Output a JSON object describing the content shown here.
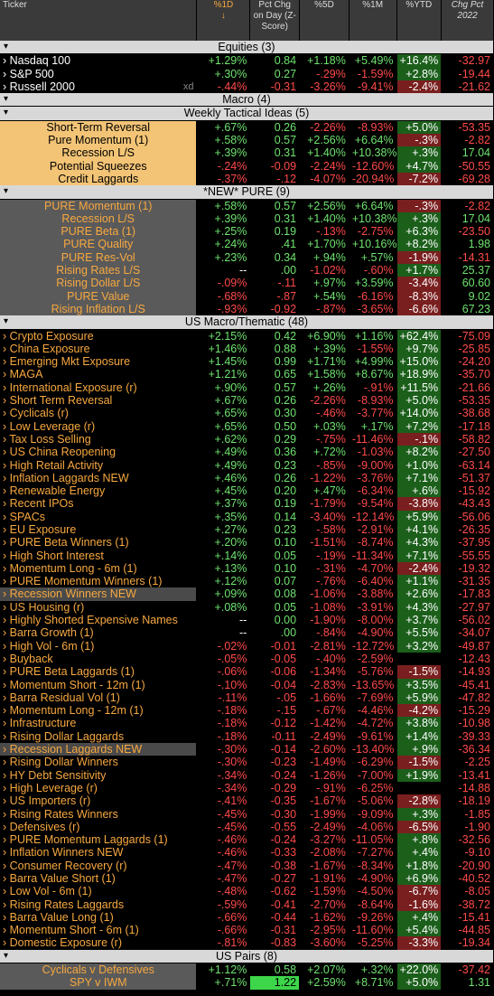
{
  "header": {
    "ticker": "Ticker",
    "col1d": "%1D",
    "col1d_arrow": "↓",
    "colz": "Pct Chg on Day (Z-Score)",
    "col5d": "%5D",
    "col1m": "%1M",
    "colytd": "%YTD",
    "col2022": "Chg Pct 2022"
  },
  "sections": [
    {
      "title": "Equities (3)",
      "rows": [
        {
          "name": "Nasdaq 100",
          "style": "data",
          "d1": "+1.29%",
          "z": "0.84",
          "d5": "+1.18%",
          "m1": "+5.49%",
          "ytd": "+16.4%",
          "y22": "-32.97"
        },
        {
          "name": "S&P 500",
          "style": "data",
          "d1": "+.30%",
          "z": "0.27",
          "d5": "-.29%",
          "m1": "-1.59%",
          "ytd": "+2.8%",
          "y22": "-19.44"
        },
        {
          "name": "Russell 2000",
          "style": "data",
          "xd": "xd",
          "d1": "-.44%",
          "z": "-0.31",
          "d5": "-3.26%",
          "m1": "-9.41%",
          "ytd": "-2.4%",
          "y22": "-21.62"
        }
      ]
    },
    {
      "title": "Macro (4)",
      "rows": []
    },
    {
      "title": "Weekly Tactical Ideas (5)",
      "rows": [
        {
          "name": "Short-Term Reversal",
          "style": "bg",
          "d1": "+.67%",
          "z": "0.26",
          "d5": "-2.26%",
          "m1": "-8.93%",
          "ytd": "+5.0%",
          "y22": "-53.35"
        },
        {
          "name": "Pure Momentum (1)",
          "style": "bg",
          "d1": "+.58%",
          "z": "0.57",
          "d5": "+2.56%",
          "m1": "+6.64%",
          "ytd": "-.3%",
          "y22": "-2.82"
        },
        {
          "name": "Recession L/S",
          "style": "bg",
          "d1": "+.39%",
          "z": "0.31",
          "d5": "+1.40%",
          "m1": "+10.38%",
          "ytd": "+.3%",
          "y22": "17.04"
        },
        {
          "name": "Potential Squeezes",
          "style": "bg",
          "d1": "-.24%",
          "z": "-0.09",
          "d5": "-2.24%",
          "m1": "-12.60%",
          "ytd": "+4.7%",
          "y22": "-50.55"
        },
        {
          "name": "Credit Laggards",
          "style": "bg",
          "d1": "-.37%",
          "z": "-.12",
          "d5": "-4.07%",
          "m1": "-20.94%",
          "ytd": "-7.2%",
          "y22": "-69.28"
        }
      ]
    },
    {
      "title": "*NEW* PURE (9)",
      "rows": [
        {
          "name": "PURE Momentum (1)",
          "style": "bgdark",
          "d1": "+.58%",
          "z": "0.57",
          "d5": "+2.56%",
          "m1": "+6.64%",
          "ytd": "-.3%",
          "y22": "-2.82"
        },
        {
          "name": "Recession L/S",
          "style": "bgdark",
          "d1": "+.39%",
          "z": "0.31",
          "d5": "+1.40%",
          "m1": "+10.38%",
          "ytd": "+.3%",
          "y22": "17.04"
        },
        {
          "name": "PURE Beta (1)",
          "style": "bgdark",
          "d1": "+.25%",
          "z": "0.19",
          "d5": "-.13%",
          "m1": "-2.75%",
          "ytd": "+6.3%",
          "y22": "-23.50"
        },
        {
          "name": "PURE Quality",
          "style": "bgdark",
          "d1": "+.24%",
          "z": ".41",
          "d5": "+1.70%",
          "m1": "+10.16%",
          "ytd": "+8.2%",
          "y22": "1.98"
        },
        {
          "name": "PURE Res-Vol",
          "style": "bgdark",
          "d1": "+.23%",
          "z": "0.34",
          "d5": "+.94%",
          "m1": "+.57%",
          "ytd": "-1.9%",
          "y22": "-14.31"
        },
        {
          "name": "Rising Rates L/S",
          "style": "bgdark",
          "d1": "--",
          "z": ".00",
          "d5": "-1.02%",
          "m1": "-.60%",
          "ytd": "+1.7%",
          "y22": "25.37"
        },
        {
          "name": "Rising Dollar L/S",
          "style": "bgdark",
          "d1": "-.09%",
          "z": "-.11",
          "d5": "+.97%",
          "m1": "+3.59%",
          "ytd": "-3.4%",
          "y22": "60.60"
        },
        {
          "name": "PURE Value",
          "style": "bgdark",
          "d1": "-.68%",
          "z": "-.87",
          "d5": "+.54%",
          "m1": "-6.16%",
          "ytd": "-8.3%",
          "y22": "9.02"
        },
        {
          "name": "Rising Inflation L/S",
          "style": "bgdark",
          "d1": "-.93%",
          "z": "-0.92",
          "d5": "-.87%",
          "m1": "-3.65%",
          "ytd": "-6.6%",
          "y22": "67.23"
        }
      ]
    },
    {
      "title": "US Macro/Thematic (48)",
      "rows": [
        {
          "name": "Crypto Exposure",
          "style": "orange",
          "d1": "+2.15%",
          "z": "0.42",
          "d5": "+6.90%",
          "m1": "+1.16%",
          "ytd": "+62.4%",
          "y22": "-75.09"
        },
        {
          "name": "China Exposure",
          "style": "orange",
          "d1": "+1.46%",
          "z": "0.88",
          "d5": "+.39%",
          "m1": "-1.55%",
          "ytd": "+9.7%",
          "y22": "-25.85"
        },
        {
          "name": "Emerging Mkt Exposure",
          "style": "orange",
          "d1": "+1.45%",
          "z": "0.99",
          "d5": "+1.71%",
          "m1": "+4.99%",
          "ytd": "+15.0%",
          "y22": "-24.20"
        },
        {
          "name": "MAGA",
          "style": "orange",
          "d1": "+1.21%",
          "z": "0.65",
          "d5": "+1.58%",
          "m1": "+8.67%",
          "ytd": "+18.9%",
          "y22": "-35.70"
        },
        {
          "name": "International Exposure (r)",
          "style": "orange",
          "d1": "+.90%",
          "z": "0.57",
          "d5": "+.26%",
          "m1": "-.91%",
          "ytd": "+11.5%",
          "y22": "-21.66"
        },
        {
          "name": "Short Term Reversal",
          "style": "orange",
          "d1": "+.67%",
          "z": "0.26",
          "d5": "-2.26%",
          "m1": "-8.93%",
          "ytd": "+5.0%",
          "y22": "-53.35"
        },
        {
          "name": "Cyclicals (r)",
          "style": "orange",
          "d1": "+.65%",
          "z": "0.30",
          "d5": "-.46%",
          "m1": "-3.77%",
          "ytd": "+14.0%",
          "y22": "-38.68"
        },
        {
          "name": "Low Leverage (r)",
          "style": "orange",
          "d1": "+.65%",
          "z": "0.50",
          "d5": "+.03%",
          "m1": "+.17%",
          "ytd": "+7.2%",
          "y22": "-17.18"
        },
        {
          "name": "Tax Loss Selling",
          "style": "orange",
          "d1": "+.62%",
          "z": "0.29",
          "d5": "-.75%",
          "m1": "-11.46%",
          "ytd": "-.1%",
          "y22": "-58.82"
        },
        {
          "name": "US China Reopening",
          "style": "orange",
          "d1": "+.49%",
          "z": "0.36",
          "d5": "+.72%",
          "m1": "-1.03%",
          "ytd": "+8.2%",
          "y22": "-27.50"
        },
        {
          "name": "High Retail Activity",
          "style": "orange",
          "d1": "+.49%",
          "z": "0.23",
          "d5": "-.85%",
          "m1": "-9.00%",
          "ytd": "+1.0%",
          "y22": "-63.14"
        },
        {
          "name": "Inflation Laggards NEW",
          "style": "orange",
          "d1": "+.46%",
          "z": "0.26",
          "d5": "-1.22%",
          "m1": "-3.76%",
          "ytd": "+7.1%",
          "y22": "-51.37"
        },
        {
          "name": "Renewable Energy",
          "style": "orange",
          "d1": "+.45%",
          "z": "0.20",
          "d5": "+.47%",
          "m1": "-6.34%",
          "ytd": "+.6%",
          "y22": "-15.92"
        },
        {
          "name": "Recent IPOs",
          "style": "orange",
          "d1": "+.37%",
          "z": "0.19",
          "d5": "-1.79%",
          "m1": "-9.54%",
          "ytd": "-3.8%",
          "y22": "-43.43"
        },
        {
          "name": "SPACs",
          "style": "orange",
          "d1": "+.35%",
          "z": "0.14",
          "d5": "-3.40%",
          "m1": "-12.14%",
          "ytd": "+5.9%",
          "y22": "-56.06"
        },
        {
          "name": "EU Exposure",
          "style": "orange",
          "d1": "+.27%",
          "z": "0.23",
          "d5": "-.58%",
          "m1": "-2.91%",
          "ytd": "+4.1%",
          "y22": "-26.35"
        },
        {
          "name": "PURE Beta Winners (1)",
          "style": "orange",
          "d1": "+.20%",
          "z": "0.10",
          "d5": "-1.51%",
          "m1": "-8.74%",
          "ytd": "+4.3%",
          "y22": "-37.95"
        },
        {
          "name": "High Short Interest",
          "style": "orange",
          "d1": "+.14%",
          "z": "0.05",
          "d5": "-.19%",
          "m1": "-11.34%",
          "ytd": "+7.1%",
          "y22": "-55.55"
        },
        {
          "name": "Momentum Long - 6m (1)",
          "style": "orange",
          "d1": "+.13%",
          "z": "0.10",
          "d5": "-.31%",
          "m1": "-4.70%",
          "ytd": "-2.4%",
          "y22": "-19.32"
        },
        {
          "name": "PURE Momentum Winners (1)",
          "style": "orange",
          "d1": "+.12%",
          "z": "0.07",
          "d5": "-.76%",
          "m1": "-6.40%",
          "ytd": "+1.1%",
          "y22": "-31.35"
        },
        {
          "name": "Recession Winners NEW",
          "style": "orange",
          "hl": true,
          "d1": "+.09%",
          "z": "0.08",
          "d5": "-1.06%",
          "m1": "-3.88%",
          "ytd": "+2.6%",
          "y22": "-17.83"
        },
        {
          "name": "US Housing (r)",
          "style": "orange",
          "d1": "+.08%",
          "z": "0.05",
          "d5": "-1.08%",
          "m1": "-3.91%",
          "ytd": "+4.3%",
          "y22": "-27.97"
        },
        {
          "name": "Highly Shorted Expensive Names",
          "style": "orange",
          "d1": "--",
          "z": "0.00",
          "d5": "-1.90%",
          "m1": "-8.00%",
          "ytd": "+3.7%",
          "y22": "-56.02"
        },
        {
          "name": "Barra Growth (1)",
          "style": "orange",
          "d1": "--",
          "z": ".00",
          "d5": "-.84%",
          "m1": "-4.90%",
          "ytd": "+5.5%",
          "y22": "-34.07"
        },
        {
          "name": "High Vol - 6m (1)",
          "style": "orange",
          "d1": "-.02%",
          "z": "-0.01",
          "d5": "-2.81%",
          "m1": "-12.72%",
          "ytd": "+3.2%",
          "y22": "-49.87"
        },
        {
          "name": "Buyback",
          "style": "orange",
          "d1": "-.05%",
          "z": "-0.05",
          "d5": "-.40%",
          "m1": "-2.59%",
          "ytd": "",
          "y22": "-12.43"
        },
        {
          "name": "PURE Beta Laggards (1)",
          "style": "orange",
          "d1": "-.06%",
          "z": "-0.06",
          "d5": "-1.34%",
          "m1": "-5.76%",
          "ytd": "-1.5%",
          "y22": "-14.93"
        },
        {
          "name": "Momentum Short - 12m (1)",
          "style": "orange",
          "d1": "-.10%",
          "z": "-0.04",
          "d5": "-2.83%",
          "m1": "-13.65%",
          "ytd": "+3.5%",
          "y22": "-45.41"
        },
        {
          "name": "Barra Residual Vol (1)",
          "style": "orange",
          "d1": "-.11%",
          "z": "-.05",
          "d5": "-1.66%",
          "m1": "-7.69%",
          "ytd": "+5.9%",
          "y22": "-47.82"
        },
        {
          "name": "Momentum Long - 12m (1)",
          "style": "orange",
          "d1": "-.18%",
          "z": "-.15",
          "d5": "-.67%",
          "m1": "-4.46%",
          "ytd": "-4.2%",
          "y22": "-15.29"
        },
        {
          "name": "Infrastructure",
          "style": "orange",
          "d1": "-.18%",
          "z": "-0.12",
          "d5": "-1.42%",
          "m1": "-4.72%",
          "ytd": "+3.8%",
          "y22": "-10.98"
        },
        {
          "name": "Rising Dollar Laggards",
          "style": "orange",
          "d1": "-.18%",
          "z": "-0.11",
          "d5": "-2.49%",
          "m1": "-9.61%",
          "ytd": "+1.4%",
          "y22": "-39.33"
        },
        {
          "name": "Recession Laggards NEW",
          "style": "orange",
          "hl": true,
          "d1": "-.30%",
          "z": "-0.14",
          "d5": "-2.60%",
          "m1": "-13.40%",
          "ytd": "+.9%",
          "y22": "-36.34"
        },
        {
          "name": "Rising Dollar Winners",
          "style": "orange",
          "d1": "-.30%",
          "z": "-0.23",
          "d5": "-1.49%",
          "m1": "-6.29%",
          "ytd": "-1.5%",
          "y22": "-2.25"
        },
        {
          "name": "HY Debt Sensitivity",
          "style": "orange",
          "d1": "-.34%",
          "z": "-0.24",
          "d5": "-1.26%",
          "m1": "-7.00%",
          "ytd": "+1.9%",
          "y22": "-13.41"
        },
        {
          "name": "High Leverage (r)",
          "style": "orange",
          "d1": "-.34%",
          "z": "-0.29",
          "d5": "-.91%",
          "m1": "-6.25%",
          "ytd": "",
          "y22": "-14.88"
        },
        {
          "name": "US Importers (r)",
          "style": "orange",
          "d1": "-.41%",
          "z": "-0.35",
          "d5": "-1.67%",
          "m1": "-5.06%",
          "ytd": "-2.8%",
          "y22": "-18.19"
        },
        {
          "name": "Rising Rates Winners",
          "style": "orange",
          "d1": "-.45%",
          "z": "-0.30",
          "d5": "-1.99%",
          "m1": "-9.09%",
          "ytd": "+.3%",
          "y22": "-1.85"
        },
        {
          "name": "Defensives (r)",
          "style": "orange",
          "d1": "-.45%",
          "z": "-0.55",
          "d5": "-2.49%",
          "m1": "-4.06%",
          "ytd": "-6.5%",
          "y22": "-1.90"
        },
        {
          "name": "PURE Momentum Laggards (1)",
          "style": "orange",
          "d1": "-.46%",
          "z": "-0.24",
          "d5": "-3.27%",
          "m1": "-11.05%",
          "ytd": "+.8%",
          "y22": "-32.56"
        },
        {
          "name": "Inflation Winners NEW",
          "style": "orange",
          "d1": "-.46%",
          "z": "-0.33",
          "d5": "-2.08%",
          "m1": "-7.27%",
          "ytd": "+.4%",
          "y22": "-9.10"
        },
        {
          "name": "Consumer Recovery (r)",
          "style": "orange",
          "d1": "-.47%",
          "z": "-0.38",
          "d5": "-1.67%",
          "m1": "-8.34%",
          "ytd": "+1.8%",
          "y22": "-20.90"
        },
        {
          "name": "Barra Value Short (1)",
          "style": "orange",
          "d1": "-.47%",
          "z": "-0.27",
          "d5": "-1.91%",
          "m1": "-4.90%",
          "ytd": "+6.9%",
          "y22": "-40.52"
        },
        {
          "name": "Low Vol - 6m (1)",
          "style": "orange",
          "d1": "-.48%",
          "z": "-0.62",
          "d5": "-1.59%",
          "m1": "-4.50%",
          "ytd": "-6.7%",
          "y22": "-8.05"
        },
        {
          "name": "Rising Rates Laggards",
          "style": "orange",
          "d1": "-.59%",
          "z": "-0.41",
          "d5": "-2.70%",
          "m1": "-8.64%",
          "ytd": "-1.6%",
          "y22": "-38.72"
        },
        {
          "name": "Barra Value Long (1)",
          "style": "orange",
          "d1": "-.66%",
          "z": "-0.44",
          "d5": "-1.62%",
          "m1": "-9.26%",
          "ytd": "+.4%",
          "y22": "-15.41"
        },
        {
          "name": "Momentum Short - 6m (1)",
          "style": "orange",
          "d1": "-.66%",
          "z": "-0.31",
          "d5": "-2.95%",
          "m1": "-11.60%",
          "ytd": "+5.4%",
          "y22": "-44.85"
        },
        {
          "name": "Domestic Exposure (r)",
          "style": "orange",
          "d1": "-.81%",
          "z": "-0.83",
          "d5": "-3.60%",
          "m1": "-5.25%",
          "ytd": "-3.3%",
          "y22": "-19.34"
        }
      ]
    },
    {
      "title": "US Pairs (8)",
      "rows": [
        {
          "name": "Cyclicals v Defensives",
          "style": "bgdark",
          "d1": "+1.12%",
          "z": "0.58",
          "d5": "+2.07%",
          "m1": "+.32%",
          "ytd": "+22.0%",
          "y22": "-37.42"
        },
        {
          "name": "SPY v IWM",
          "style": "bgdark",
          "d1": "+.71%",
          "z": "1.22",
          "zbright": true,
          "d5": "+2.59%",
          "m1": "+8.71%",
          "ytd": "+5.0%",
          "y22": "1.31"
        }
      ]
    }
  ],
  "colors": {
    "positive": "#6fe36f",
    "negative": "#ff4a4a",
    "orange": "#f7a840",
    "section_bg": "#d8d8d8",
    "header_bg": "#3a3a3a",
    "ytd_pos_bg": "#1b5f1b",
    "ytd_neg_bg": "#7a1f1f"
  }
}
